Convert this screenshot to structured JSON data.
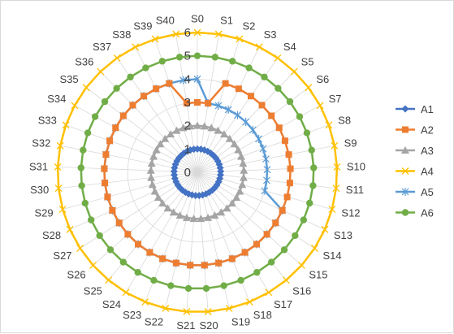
{
  "chart_data": {
    "type": "radar",
    "title": "",
    "categories": [
      "S0",
      "S1",
      "S2",
      "S3",
      "S4",
      "S5",
      "S6",
      "S7",
      "S8",
      "S9",
      "S10",
      "S11",
      "S12",
      "S13",
      "S14",
      "S15",
      "S16",
      "S17",
      "S18",
      "S19",
      "S20",
      "S21",
      "S22",
      "S23",
      "S24",
      "S25",
      "S26",
      "S27",
      "S28",
      "S29",
      "S30",
      "S31",
      "S32",
      "S33",
      "S34",
      "S35",
      "S36",
      "S37",
      "S38",
      "S39",
      "S40"
    ],
    "rlim": [
      0,
      6
    ],
    "ticks": [
      "0",
      "1",
      "2",
      "3",
      "4",
      "5",
      "6"
    ],
    "grid": true,
    "legend_position": "right",
    "series": [
      {
        "name": "A1",
        "color": "#4472c4",
        "marker": "diamond",
        "values": [
          1,
          1,
          1,
          1,
          1,
          1,
          1,
          1,
          1,
          1,
          1,
          1,
          1,
          1,
          1,
          1,
          1,
          1,
          1,
          1,
          1,
          1,
          1,
          1,
          1,
          1,
          1,
          1,
          1,
          1,
          1,
          1,
          1,
          1,
          1,
          1,
          1,
          1,
          1,
          1,
          1
        ]
      },
      {
        "name": "A2",
        "color": "#ed7d31",
        "marker": "square",
        "values": [
          3,
          3,
          4,
          4,
          4,
          4,
          4,
          4,
          4,
          4,
          4,
          4,
          4,
          4,
          4,
          4,
          4,
          4,
          4,
          4,
          4,
          4,
          4,
          4,
          4,
          4,
          4,
          4,
          4,
          4,
          4,
          4,
          4,
          4,
          4,
          4,
          4,
          4,
          4,
          4,
          3
        ]
      },
      {
        "name": "A3",
        "color": "#a5a5a5",
        "marker": "triangle",
        "values": [
          2,
          2,
          2,
          2,
          2,
          2,
          2,
          2,
          2,
          2,
          2,
          2,
          2,
          2,
          2,
          2,
          2,
          2,
          2,
          2,
          2,
          2,
          2,
          2,
          2,
          2,
          2,
          2,
          2,
          2,
          2,
          2,
          2,
          2,
          2,
          2,
          2,
          2,
          2,
          2,
          2
        ]
      },
      {
        "name": "A4",
        "color": "#ffc000",
        "marker": "x",
        "values": [
          6,
          6,
          6,
          6,
          6,
          6,
          6,
          6,
          6,
          6,
          6,
          6,
          6,
          6,
          6,
          6,
          6,
          6,
          6,
          6,
          6,
          6,
          6,
          6,
          6,
          6,
          6,
          6,
          6,
          6,
          6,
          6,
          6,
          6,
          6,
          6,
          6,
          6,
          6,
          6,
          6
        ]
      },
      {
        "name": "A5",
        "color": "#5b9bd5",
        "marker": "star",
        "values": [
          4,
          3,
          3,
          3,
          3,
          3,
          3,
          3,
          3,
          3,
          3,
          3,
          3,
          4,
          4,
          4,
          4,
          4,
          4,
          4,
          4,
          4,
          4,
          4,
          4,
          4,
          4,
          4,
          4,
          4,
          4,
          4,
          4,
          4,
          4,
          4,
          4,
          4,
          4,
          4,
          4
        ]
      },
      {
        "name": "A6",
        "color": "#70ad47",
        "marker": "circle",
        "values": [
          5,
          5,
          5,
          5,
          5,
          5,
          5,
          5,
          5,
          5,
          5,
          5,
          5,
          5,
          5,
          5,
          5,
          5,
          5,
          5,
          5,
          5,
          5,
          5,
          5,
          5,
          5,
          5,
          5,
          5,
          5,
          5,
          5,
          5,
          5,
          5,
          5,
          5,
          5,
          5,
          5
        ]
      }
    ]
  }
}
